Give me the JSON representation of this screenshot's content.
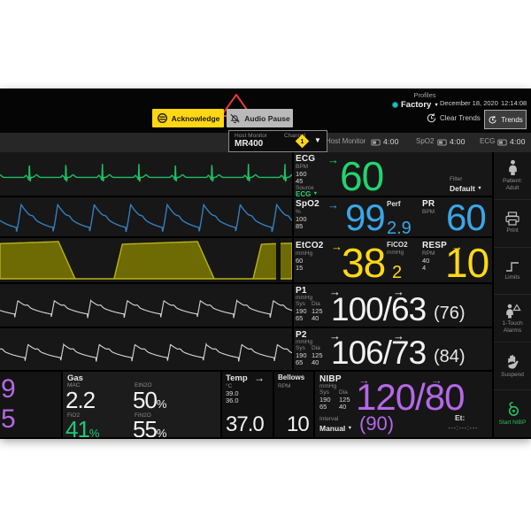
{
  "icons": {
    "trend_arrow": "→",
    "dropdown_caret": "▼"
  },
  "topbar": {
    "profiles_label": "Profiles",
    "profile_value": "Factory",
    "date": "December 18, 2020",
    "time": "12:14:08",
    "acknowledge_label": "Acknowledge",
    "audio_pause_label": "Audio Pause",
    "clear_trends_label": "Clear Trends",
    "trends_label": "Trends"
  },
  "subbar": {
    "host_monitor_label": "Host Monitor",
    "channel_label": "Channel",
    "host_monitor_value": "MR400",
    "channel_value": "1",
    "timers": [
      {
        "label": "Host Monitor",
        "value": "4:00"
      },
      {
        "label": "SpO2",
        "value": "4:00"
      },
      {
        "label": "ECG",
        "value": "4:00"
      }
    ]
  },
  "ecg": {
    "label": "ECG",
    "unit": "BPM",
    "limit_high": "160",
    "limit_low": "45",
    "source_label": "Source",
    "source_value": "ECG",
    "value": "60",
    "filter_label": "Filter",
    "filter_value": "Default"
  },
  "spo2": {
    "label": "SpO2",
    "unit": "%",
    "limit_high": "100",
    "limit_low": "85",
    "value": "99",
    "perf_label": "Perf",
    "perf_value": "2.9",
    "pr_label": "PR",
    "pr_unit": "BPM",
    "pr_value": "60"
  },
  "etco2": {
    "label": "EtCO2",
    "unit": "mmHg",
    "limit_high": "60",
    "limit_low": "15",
    "value": "38",
    "fico2_label": "FiCO2",
    "fico2_unit": "mmHg",
    "fico2_value": "2",
    "resp_label": "RESP",
    "resp_unit": "RPM",
    "resp_limit_high": "40",
    "resp_limit_low": "4",
    "resp_value": "10"
  },
  "p1": {
    "label": "P1",
    "unit": "mmHg",
    "sys_label": "Sys",
    "dia_label": "Dia",
    "sys_high": "190",
    "dia_high": "125",
    "sys_low": "65",
    "dia_low": "40",
    "value": "100/63",
    "mean": "(76)"
  },
  "p2": {
    "label": "P2",
    "unit": "mmHg",
    "sys_label": "Sys",
    "dia_label": "Dia",
    "sys_high": "190",
    "dia_high": "125",
    "sys_low": "65",
    "dia_low": "40",
    "value": "106/73",
    "mean": "(84)"
  },
  "edge": {
    "top_value": "9",
    "bottom_value": "5"
  },
  "gas": {
    "label": "Gas",
    "mac_label": "MAC",
    "mac_value": "2.2",
    "etn2o_label": "EtN2O",
    "etn2o_value": "50",
    "fio2_label": "FiO2",
    "fio2_value": "41",
    "fin2o_label": "FiN2O",
    "fin2o_value": "55",
    "percent": "%"
  },
  "temp": {
    "label": "Temp",
    "unit": "°C",
    "limit_high": "39.0",
    "limit_low": "36.0",
    "value": "37.0"
  },
  "bellows": {
    "label": "Bellows",
    "unit": "RPM",
    "value": "10"
  },
  "nibp": {
    "label": "NIBP",
    "unit": "mmHg",
    "sys_label": "Sys",
    "dia_label": "Dia",
    "sys_high": "190",
    "dia_high": "125",
    "sys_low": "65",
    "dia_low": "40",
    "value": "120/80",
    "mean": "(90)",
    "interval_label": "Interval",
    "interval_value": "Manual",
    "et_label": "Et:",
    "et_value": "---:---:---"
  },
  "sidebar": {
    "items": [
      {
        "line1": "Patient:",
        "line2": "Adult"
      },
      {
        "line1": "Print",
        "line2": ""
      },
      {
        "line1": "Limits",
        "line2": ""
      },
      {
        "line1": "1-Touch",
        "line2": "Alarms"
      },
      {
        "line1": "Suspend",
        "line2": ""
      },
      {
        "line1": "Start NIBP",
        "line2": ""
      }
    ]
  },
  "colors": {
    "green": "#22d470",
    "blue": "#3aa6e8",
    "yellow": "#ffd913",
    "purple": "#b468e6",
    "teal": "#16c7c7",
    "alarm_red": "#e03a3a",
    "ack_yellow": "#ffd713"
  },
  "waveforms": [
    {
      "kind": "ecg",
      "cycles": 8,
      "phase": 0.45,
      "color": "#1fbf63"
    },
    {
      "kind": "pleth",
      "cycles": 8,
      "phase": 0.55,
      "color": "#337fc0"
    },
    {
      "kind": "co2",
      "cycles": 2.1,
      "phase": 0.18,
      "color": "#b9b513",
      "fill": "#6e6a04"
    },
    {
      "kind": "art",
      "cycles": 8,
      "phase": 0.6,
      "color": "#d9d9d9"
    },
    {
      "kind": "art",
      "cycles": 8.2,
      "phase": 0.3,
      "color": "#d9d9d9"
    }
  ]
}
